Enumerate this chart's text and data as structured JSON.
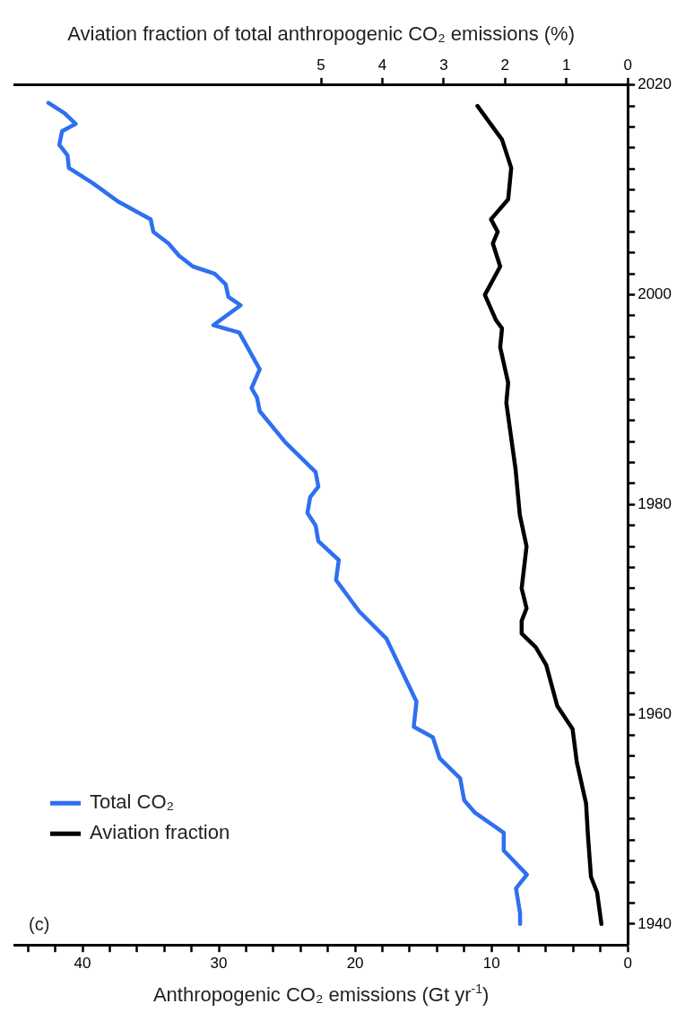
{
  "chart_data": {
    "type": "line",
    "orientation": "horizontal",
    "xlabel": "Anthropogenic CO₂ emissions (Gt yr$^{-1}$)",
    "x2label": "Aviation fraction of total anthropogenic CO₂ emissions (%)",
    "annotations": [
      "(c)"
    ],
    "legend": "bottom left",
    "marker": "none",
    "line_style": "solid",
    "grid": false,
    "xlim": [
      45,
      0
    ],
    "xticks": [
      {
        "value": 44,
        "label": null
      },
      {
        "value": 42,
        "label": null
      },
      40,
      {
        "value": 38,
        "label": null
      },
      {
        "value": 36,
        "label": null
      },
      {
        "value": 34,
        "label": null
      },
      {
        "value": 32,
        "label": null
      },
      30,
      {
        "value": 28,
        "label": null
      },
      {
        "value": 26,
        "label": null
      },
      {
        "value": 24,
        "label": null
      },
      {
        "value": 22,
        "label": null
      },
      20,
      {
        "value": 18,
        "label": null
      },
      {
        "value": 16,
        "label": null
      },
      {
        "value": 14,
        "label": null
      },
      {
        "value": 12,
        "label": null
      },
      10,
      {
        "value": 8,
        "label": null
      },
      {
        "value": 6,
        "label": null
      },
      {
        "value": 4,
        "label": null
      },
      {
        "value": 2,
        "label": null
      },
      0
    ],
    "x2lim": [
      10,
      0
    ],
    "x2ticks": [
      5,
      4,
      3,
      2,
      1,
      0
    ],
    "ylim": [
      1938,
      2020
    ],
    "yticks": [
      1940,
      {
        "value": 1942,
        "label": null
      },
      {
        "value": 1944,
        "label": null
      },
      {
        "value": 1946,
        "label": null
      },
      {
        "value": 1948,
        "label": null
      },
      {
        "value": 1950,
        "label": null
      },
      {
        "value": 1952,
        "label": null
      },
      {
        "value": 1954,
        "label": null
      },
      {
        "value": 1956,
        "label": null
      },
      {
        "value": 1958,
        "label": null
      },
      1960,
      {
        "value": 1962,
        "label": null
      },
      {
        "value": 1964,
        "label": null
      },
      {
        "value": 1966,
        "label": null
      },
      {
        "value": 1968,
        "label": null
      },
      {
        "value": 1970,
        "label": null
      },
      {
        "value": 1972,
        "label": null
      },
      {
        "value": 1974,
        "label": null
      },
      {
        "value": 1976,
        "label": null
      },
      {
        "value": 1978,
        "label": null
      },
      1980,
      {
        "value": 1982,
        "label": null
      },
      {
        "value": 1984,
        "label": null
      },
      {
        "value": 1986,
        "label": null
      },
      {
        "value": 1988,
        "label": null
      },
      {
        "value": 1990,
        "label": null
      },
      {
        "value": 1992,
        "label": null
      },
      {
        "value": 1994,
        "label": null
      },
      {
        "value": 1996,
        "label": null
      },
      {
        "value": 1998,
        "label": null
      },
      2000,
      {
        "value": 2002,
        "label": null
      },
      {
        "value": 2004,
        "label": null
      },
      {
        "value": 2006,
        "label": null
      },
      {
        "value": 2008,
        "label": null
      },
      {
        "value": 2010,
        "label": null
      },
      {
        "value": 2012,
        "label": null
      },
      {
        "value": 2014,
        "label": null
      },
      {
        "value": 2016,
        "label": null
      },
      {
        "value": 2018,
        "label": null
      },
      2020
    ],
    "series": [
      {
        "name": "Total CO₂",
        "color": "#2f6ff0",
        "x": [
          1940,
          1941,
          1943.4,
          1944.7,
          1947,
          1948.7,
          1950.6,
          1951.8,
          1953.9,
          1955.8,
          1957.8,
          1958.8,
          1961.2,
          1967.2,
          1969.8,
          1972.8,
          1974.7,
          1976.5,
          1978,
          1979.2,
          1980.7,
          1981.7,
          1983.1,
          1985.9,
          1988.9,
          1990.2,
          1991.1,
          1992.9,
          1996.4,
          1997.1,
          1999,
          1999.8,
          2001,
          2002,
          2002.7,
          2003.7,
          2004.9,
          2006,
          2007.2,
          2008.9,
          2010.6,
          2012.1,
          2013.3,
          2014.3,
          2015.6,
          2016.3,
          2017.3,
          2018.3
        ],
        "values": [
          7.9,
          7.9,
          8.2,
          7.4,
          9.1,
          9.1,
          11.2,
          12.0,
          12.3,
          13.8,
          14.3,
          15.7,
          15.5,
          17.7,
          19.7,
          21.4,
          21.2,
          22.7,
          22.9,
          23.5,
          23.3,
          22.7,
          22.9,
          25.1,
          27.0,
          27.2,
          27.6,
          27.0,
          28.5,
          30.4,
          28.4,
          29.3,
          29.5,
          30.3,
          31.9,
          32.9,
          33.7,
          34.8,
          35.0,
          37.4,
          39.2,
          41.0,
          41.1,
          41.7,
          41.5,
          40.5,
          41.3,
          42.5
        ]
      },
      {
        "name": "Aviation fraction",
        "color": "#000000",
        "axis": "x2",
        "x": [
          1940,
          1943,
          1944.5,
          1948.5,
          1951.5,
          1955.4,
          1958.6,
          1960.8,
          1964.7,
          1966.4,
          1967.7,
          1968.9,
          1970.1,
          1972,
          1976,
          1979,
          1983.4,
          1989.7,
          1991.6,
          1995,
          1996.8,
          1997.6,
          2000,
          2002.7,
          2004.9,
          2006,
          2007.2,
          2009.1,
          2012.1,
          2014.8,
          2018
        ],
        "values": [
          0.43,
          0.5,
          0.6,
          0.65,
          0.68,
          0.83,
          0.9,
          1.15,
          1.33,
          1.5,
          1.73,
          1.73,
          1.65,
          1.73,
          1.65,
          1.76,
          1.83,
          1.98,
          1.95,
          2.08,
          2.05,
          2.15,
          2.33,
          2.08,
          2.2,
          2.12,
          2.23,
          1.95,
          1.9,
          2.05,
          2.45
        ]
      }
    ]
  }
}
